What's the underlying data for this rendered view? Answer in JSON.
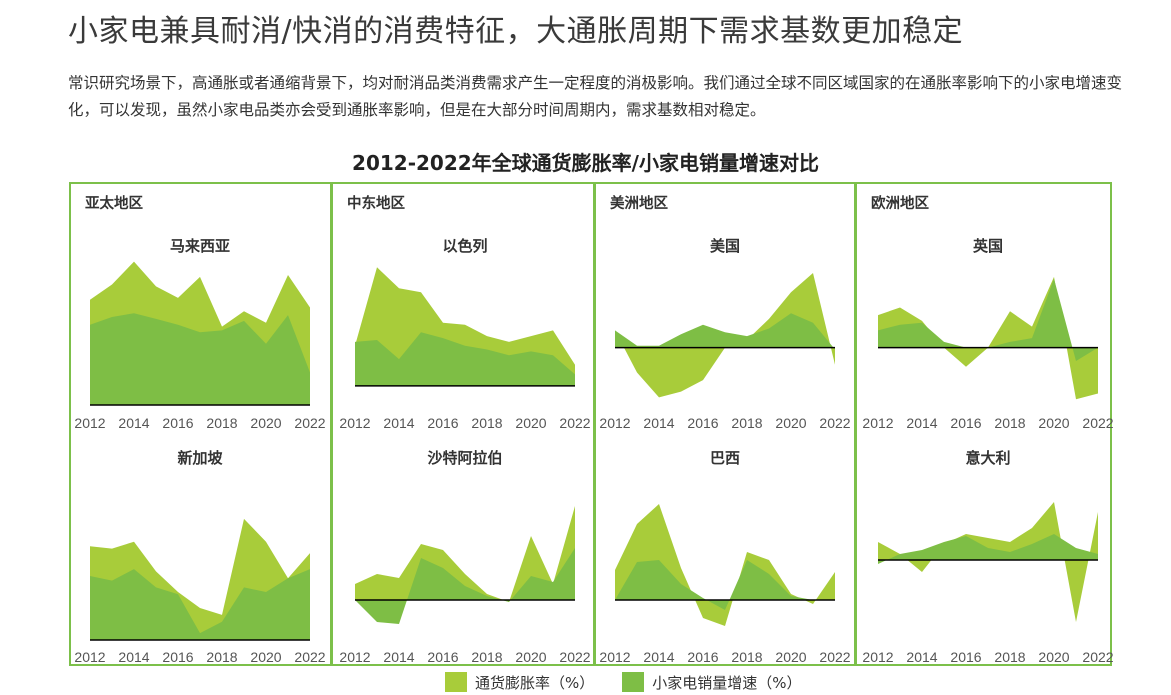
{
  "header": {
    "title": "小家电兼具耐消/快消的消费特征，大通胀周期下需求基数更加稳定",
    "description": "常识研究场景下，高通胀或者通缩背景下，均对耐消品类消费需求产生一定程度的消极影响。我们通过全球不同区域国家的在通胀率影响下的小家电增速变化，可以发现，虽然小家电品类亦会受到通胀率影响，但是在大部分时间周期内，需求基数相对稳定。"
  },
  "colors": {
    "inflation": "#a8cc3a",
    "sales": "#7ebe45",
    "border": "#7cc04a",
    "axis": "#000000"
  },
  "chart_data": {
    "type": "area",
    "title": "2012-2022年全球通货膨胀率/小家电销量增速对比",
    "legend": [
      "通货膨胀率（%）",
      "小家电销量增速（%）"
    ],
    "x_ticks": [
      "2012",
      "2014",
      "2016",
      "2018",
      "2020",
      "2022"
    ],
    "years": [
      2012,
      2013,
      2014,
      2015,
      2016,
      2017,
      2018,
      2019,
      2020,
      2021,
      2022
    ],
    "regions": [
      "亚太地区",
      "中东地区",
      "美洲地区",
      "欧洲地区"
    ],
    "panels": [
      {
        "country": "马来西亚",
        "inflation": [
          5.5,
          6.3,
          7.5,
          6.2,
          5.6,
          6.7,
          4.1,
          4.9,
          4.3,
          6.8,
          5.1
        ],
        "sales": [
          4.2,
          4.6,
          4.8,
          4.5,
          4.2,
          3.8,
          3.9,
          4.4,
          3.2,
          4.7,
          1.7
        ],
        "ylim": [
          0,
          8
        ]
      },
      {
        "country": "以色列",
        "inflation": [
          2.1,
          6.2,
          5.1,
          4.9,
          3.3,
          3.2,
          2.6,
          2.3,
          2.6,
          2.9,
          1.1
        ],
        "sales": [
          2.3,
          2.4,
          1.4,
          2.8,
          2.5,
          2.1,
          1.9,
          1.6,
          1.8,
          1.6,
          0.6
        ],
        "ylim": [
          -1,
          7
        ]
      },
      {
        "country": "美国",
        "inflation": [
          0.9,
          -1.3,
          -2.6,
          -2.3,
          -1.7,
          0.0,
          0.4,
          1.5,
          2.9,
          3.9,
          -0.9
        ],
        "sales": [
          0.9,
          0.1,
          0.1,
          0.7,
          1.2,
          0.8,
          0.6,
          1.0,
          1.8,
          1.3,
          -0.1
        ],
        "ylim": [
          -3,
          5
        ]
      },
      {
        "country": "英国",
        "inflation": [
          1.7,
          2.1,
          1.4,
          0.0,
          -1.0,
          0.0,
          1.9,
          1.1,
          3.7,
          -2.7,
          -2.4
        ],
        "sales": [
          0.9,
          1.2,
          1.3,
          0.3,
          0.0,
          0.0,
          0.3,
          0.5,
          3.6,
          -0.7,
          0.0
        ],
        "ylim": [
          -3,
          5
        ]
      },
      {
        "country": "新加坡",
        "inflation": [
          4.1,
          4.0,
          4.3,
          3.0,
          2.1,
          1.4,
          1.1,
          5.3,
          4.3,
          2.7,
          3.8
        ],
        "sales": [
          2.8,
          2.6,
          3.1,
          2.3,
          2.0,
          0.3,
          0.8,
          2.3,
          2.1,
          2.7,
          3.1
        ],
        "ylim": [
          0,
          7
        ]
      },
      {
        "country": "沙特阿拉伯",
        "inflation": [
          0.8,
          1.3,
          1.1,
          2.8,
          2.5,
          1.3,
          0.3,
          -0.1,
          3.2,
          0.8,
          4.7
        ],
        "sales": [
          0.0,
          -1.1,
          -1.2,
          2.1,
          1.6,
          0.7,
          0.2,
          -0.1,
          1.2,
          0.9,
          2.6
        ],
        "ylim": [
          -2,
          6
        ]
      },
      {
        "country": "巴西",
        "inflation": [
          1.5,
          3.8,
          4.8,
          1.6,
          -0.9,
          -1.3,
          2.4,
          2.0,
          0.3,
          -0.2,
          1.4
        ],
        "sales": [
          0.0,
          1.9,
          2.0,
          0.8,
          0.1,
          -0.5,
          2.0,
          1.3,
          0.2,
          0.0,
          0.0
        ],
        "ylim": [
          -2,
          6
        ]
      },
      {
        "country": "意大利",
        "inflation": [
          0.9,
          0.3,
          -0.6,
          0.8,
          1.3,
          1.1,
          0.9,
          1.6,
          2.9,
          -3.1,
          2.4
        ],
        "sales": [
          -0.2,
          0.3,
          0.5,
          0.9,
          1.2,
          0.6,
          0.4,
          0.8,
          1.3,
          0.6,
          0.3
        ],
        "ylim": [
          -4,
          4
        ]
      }
    ]
  }
}
